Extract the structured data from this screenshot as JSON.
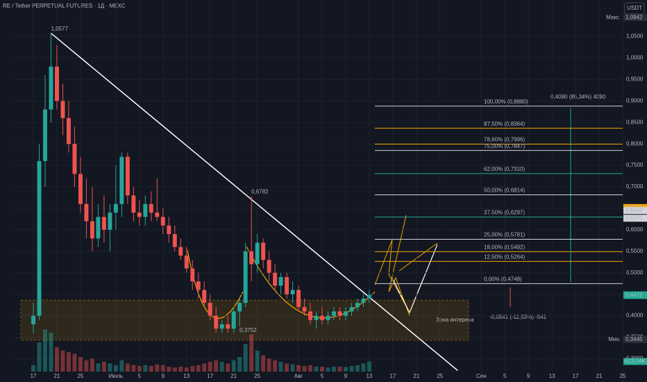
{
  "chart_data": {
    "type": "candlestick",
    "title": "RE / Tether PERPETUAL FUTURES · 1Д · MEXC",
    "currency": "USDT",
    "x": [
      0,
      1,
      2,
      3,
      4,
      5,
      6,
      7,
      8,
      9,
      10,
      11,
      12,
      13,
      14,
      15,
      16,
      17,
      18,
      19,
      20,
      21,
      22,
      23,
      24,
      25,
      26,
      27,
      28,
      29,
      30,
      31,
      32,
      33,
      34,
      35,
      36,
      37,
      38,
      39,
      40,
      41,
      42,
      43,
      44,
      45,
      46,
      47,
      48,
      49,
      50,
      51,
      52,
      53,
      54,
      55,
      56,
      57
    ],
    "open": [
      0.38,
      0.4,
      0.76,
      0.88,
      0.98,
      0.9,
      0.86,
      0.8,
      0.73,
      0.66,
      0.62,
      0.58,
      0.63,
      0.6,
      0.64,
      0.66,
      0.77,
      0.68,
      0.64,
      0.63,
      0.66,
      0.64,
      0.63,
      0.61,
      0.59,
      0.56,
      0.54,
      0.51,
      0.48,
      0.46,
      0.43,
      0.4,
      0.37,
      0.38,
      0.37,
      0.41,
      0.43,
      0.55,
      0.52,
      0.57,
      0.53,
      0.5,
      0.47,
      0.49,
      0.45,
      0.46,
      0.42,
      0.41,
      0.39,
      0.4,
      0.39,
      0.4,
      0.41,
      0.4,
      0.41,
      0.42,
      0.43,
      0.44
    ],
    "high": [
      0.43,
      0.8,
      0.96,
      1.0577,
      1.03,
      0.94,
      0.9,
      0.84,
      0.77,
      0.72,
      0.7,
      0.66,
      0.68,
      0.66,
      0.75,
      0.78,
      0.78,
      0.7,
      0.67,
      0.68,
      0.69,
      0.72,
      0.65,
      0.63,
      0.61,
      0.58,
      0.56,
      0.53,
      0.5,
      0.48,
      0.45,
      0.42,
      0.39,
      0.4,
      0.42,
      0.44,
      0.57,
      0.6782,
      0.59,
      0.58,
      0.55,
      0.52,
      0.5,
      0.5,
      0.48,
      0.47,
      0.44,
      0.43,
      0.41,
      0.42,
      0.41,
      0.42,
      0.42,
      0.42,
      0.43,
      0.44,
      0.45,
      0.46
    ],
    "low": [
      0.36,
      0.39,
      0.7,
      0.85,
      0.88,
      0.82,
      0.78,
      0.7,
      0.64,
      0.58,
      0.55,
      0.56,
      0.57,
      0.55,
      0.6,
      0.63,
      0.66,
      0.62,
      0.61,
      0.61,
      0.62,
      0.62,
      0.59,
      0.57,
      0.55,
      0.53,
      0.5,
      0.46,
      0.44,
      0.42,
      0.39,
      0.36,
      0.36,
      0.36,
      0.36,
      0.3752,
      0.42,
      0.48,
      0.5,
      0.51,
      0.48,
      0.46,
      0.45,
      0.44,
      0.43,
      0.41,
      0.4,
      0.38,
      0.37,
      0.38,
      0.38,
      0.39,
      0.39,
      0.39,
      0.4,
      0.41,
      0.42,
      0.43
    ],
    "close": [
      0.4,
      0.76,
      0.88,
      0.98,
      0.9,
      0.86,
      0.8,
      0.73,
      0.66,
      0.62,
      0.58,
      0.63,
      0.6,
      0.64,
      0.66,
      0.77,
      0.68,
      0.64,
      0.63,
      0.66,
      0.64,
      0.63,
      0.61,
      0.59,
      0.56,
      0.54,
      0.51,
      0.48,
      0.46,
      0.43,
      0.4,
      0.37,
      0.38,
      0.37,
      0.41,
      0.43,
      0.55,
      0.52,
      0.57,
      0.53,
      0.5,
      0.47,
      0.49,
      0.45,
      0.46,
      0.42,
      0.41,
      0.39,
      0.4,
      0.39,
      0.4,
      0.41,
      0.4,
      0.41,
      0.42,
      0.43,
      0.44,
      0.4486
    ],
    "volume": [
      400,
      1800,
      2600,
      2400,
      1500,
      1300,
      1200,
      1100,
      900,
      700,
      800,
      500,
      600,
      500,
      400,
      700,
      500,
      400,
      350,
      400,
      350,
      450,
      400,
      300,
      250,
      300,
      250,
      350,
      400,
      500,
      600,
      700,
      600,
      500,
      700,
      900,
      1700,
      2300,
      1300,
      1000,
      800,
      700,
      600,
      500,
      450,
      400,
      350,
      400,
      300,
      300,
      250,
      300,
      300,
      280,
      350,
      400,
      500,
      623.04
    ],
    "vlim": [
      0,
      3000
    ],
    "up_color": "#26a69a",
    "down_color": "#ef5350",
    "xlim": [
      -3.3,
      100
    ],
    "xticks": [
      {
        "value": 0,
        "label": "17"
      },
      {
        "value": 4,
        "label": "21"
      },
      {
        "value": 8,
        "label": "25"
      },
      {
        "value": 14,
        "label": "Июль"
      },
      {
        "value": 18,
        "label": "5"
      },
      {
        "value": 22,
        "label": "9"
      },
      {
        "value": 26,
        "label": "13"
      },
      {
        "value": 30,
        "label": "17"
      },
      {
        "value": 34,
        "label": "21"
      },
      {
        "value": 38,
        "label": "25"
      },
      {
        "value": 45,
        "label": "Авг"
      },
      {
        "value": 49,
        "label": "5"
      },
      {
        "value": 53,
        "label": "9"
      },
      {
        "value": 57,
        "label": "13"
      },
      {
        "value": 61,
        "label": "17"
      },
      {
        "value": 65,
        "label": "21"
      },
      {
        "value": 69,
        "label": "25"
      },
      {
        "value": 76,
        "label": "Сен"
      },
      {
        "value": 80,
        "label": "5"
      },
      {
        "value": 84,
        "label": "9"
      },
      {
        "value": 88,
        "label": "13"
      },
      {
        "value": 92,
        "label": "17"
      },
      {
        "value": 96,
        "label": "21"
      },
      {
        "value": 100,
        "label": "25"
      }
    ],
    "ylim": [
      0.27,
      1.135
    ],
    "yticks": [
      {
        "value": 0.3,
        "label": "0,3000"
      },
      {
        "value": 0.35,
        "label": "0,3500"
      },
      {
        "value": 0.4,
        "label": "0,4000"
      },
      {
        "value": 0.45,
        "label": "0,4500"
      },
      {
        "value": 0.5,
        "label": "0,5000"
      },
      {
        "value": 0.55,
        "label": "0,5500"
      },
      {
        "value": 0.6,
        "label": "0,6000"
      },
      {
        "value": 0.65,
        "label": "0,6500"
      },
      {
        "value": 0.7,
        "label": "0,7000"
      },
      {
        "value": 0.75,
        "label": "0,7500"
      },
      {
        "value": 0.8,
        "label": "0,8000"
      },
      {
        "value": 0.85,
        "label": "0,8500"
      },
      {
        "value": 0.9,
        "label": "0,9000"
      },
      {
        "value": 0.95,
        "label": "0,9500"
      },
      {
        "value": 1.0,
        "label": "1,0000"
      },
      {
        "value": 1.05,
        "label": "1,0500"
      }
    ],
    "grid": true,
    "fib_levels": [
      {
        "value": 0.888,
        "label": "100,00% (0,8880)",
        "color": "#d1d4dc"
      },
      {
        "value": 0.8364,
        "label": "87,50% (0,8364)",
        "color": "#f7a600"
      },
      {
        "value": 0.7996,
        "label": "78,60% (0,7996)",
        "color": "#f7a600"
      },
      {
        "value": 0.7847,
        "label": "75,00% (0,7847)",
        "color": "#d1d4dc"
      },
      {
        "value": 0.731,
        "label": "62,00% (0,7310)",
        "color": "#22ab94"
      },
      {
        "value": 0.6814,
        "label": "50,00% (0,6814)",
        "color": "#d1d4dc"
      },
      {
        "value": 0.6297,
        "label": "37,50% (0,6297)",
        "color": "#22ab94"
      },
      {
        "value": 0.5781,
        "label": "25,00% (0,5781)",
        "color": "#d1d4dc"
      },
      {
        "value": 0.5492,
        "label": "18,00% (0,5492)",
        "color": "#f7a600"
      },
      {
        "value": 0.5264,
        "label": "12,50% (0,5264)",
        "color": "#f7a600"
      },
      {
        "value": 0.4748,
        "label": "0,00% (0,4748)",
        "color": "#d1d4dc"
      }
    ],
    "price_labels": [
      {
        "value": 1.0942,
        "label": "1,0942",
        "tag": "Макс.",
        "color": "#2a2e39"
      },
      {
        "value": 0.6519,
        "label": "0,6519",
        "color": "#f7a600"
      },
      {
        "value": 0.6448,
        "label": "0,6448",
        "color": "#d1d4dc"
      },
      {
        "value": 0.627,
        "label": "0,6270",
        "color": "#d1d4dc"
      },
      {
        "value": 0.4486,
        "label": "0,4486",
        "color": "#22ab94"
      },
      {
        "value": 0.4472,
        "label": "0,4472",
        "color": "#22ab94"
      },
      {
        "value": 0.3445,
        "label": "0,3445",
        "tag": "Мин.",
        "color": "#2a2e39"
      }
    ],
    "volume_label": {
      "value": 623.04,
      "label": "623,04K"
    },
    "point_labels": [
      {
        "x": 3,
        "value": 1.0577,
        "label": "1,0577"
      },
      {
        "x": 37,
        "value": 0.6782,
        "label": "0,6782"
      },
      {
        "x": 35,
        "value": 0.3752,
        "label": "0,3752"
      }
    ],
    "trendline": {
      "x": [
        3,
        72
      ],
      "y": [
        1.0577,
        0.2726
      ]
    },
    "zone_text": "Зона интереса",
    "measure_down": "-0,0541 (-11,53%) -541",
    "measure_up": "0,4090 (85,34%) 4090"
  }
}
